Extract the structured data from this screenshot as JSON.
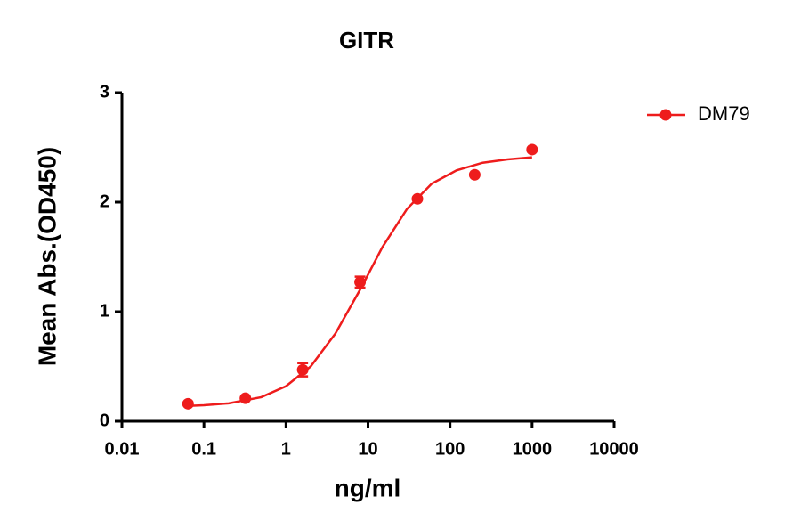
{
  "chart_data": {
    "type": "scatter",
    "title": "GITR",
    "x_label": "ng/ml",
    "y_label": "Mean Abs.(OD450)",
    "xscale": "log",
    "xlim": [
      0.01,
      10000
    ],
    "xticks": [
      0.01,
      0.1,
      1,
      10,
      100,
      1000,
      10000
    ],
    "ylim": [
      0,
      3
    ],
    "yticks": [
      0,
      1,
      2,
      3
    ],
    "legend": "top-right",
    "series": [
      {
        "name": "DM79",
        "color": "#ee1c1c",
        "x": [
          0.064,
          0.32,
          1.6,
          8,
          40,
          200,
          1000
        ],
        "values": [
          0.16,
          0.21,
          0.47,
          1.27,
          2.03,
          2.25,
          2.48
        ],
        "errors": [
          0.01,
          0.01,
          0.06,
          0.05,
          0.01,
          0.01,
          0.01
        ],
        "fit": {
          "x": [
            0.064,
            0.1,
            0.2,
            0.5,
            1,
            2,
            4,
            8,
            15,
            30,
            60,
            120,
            250,
            500,
            1000
          ],
          "values": [
            0.14,
            0.146,
            0.164,
            0.22,
            0.32,
            0.5,
            0.8,
            1.2,
            1.59,
            1.94,
            2.17,
            2.29,
            2.36,
            2.39,
            2.41
          ]
        }
      }
    ]
  }
}
